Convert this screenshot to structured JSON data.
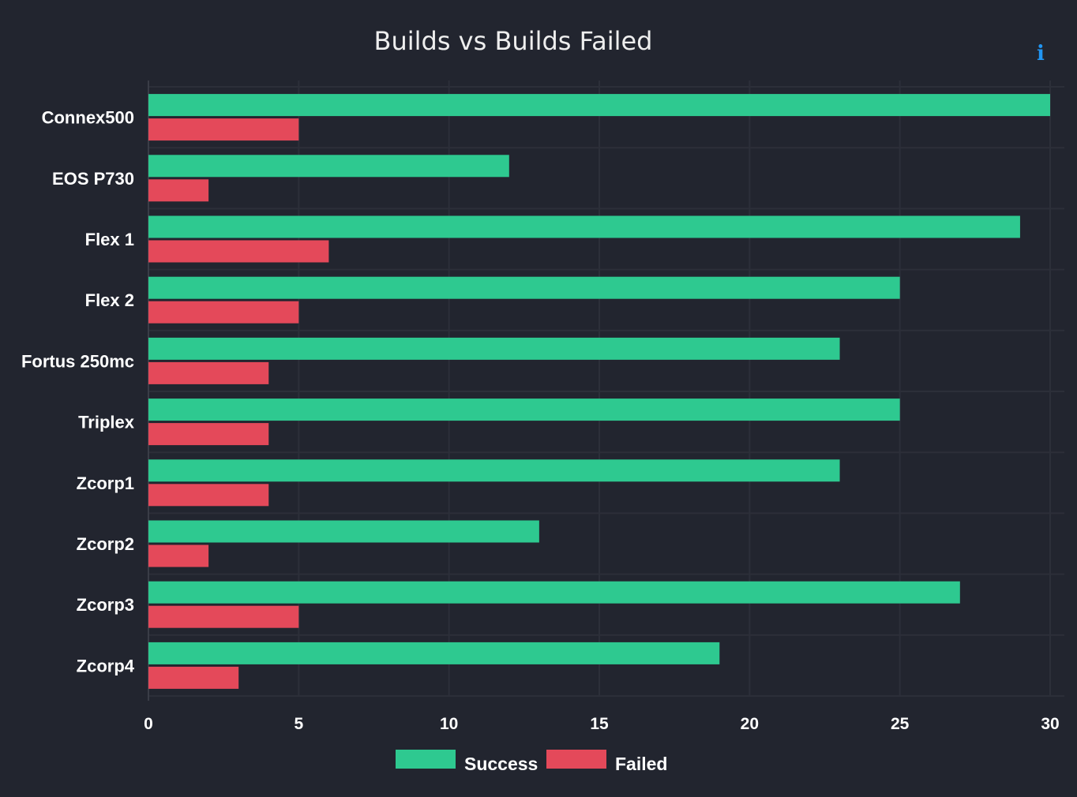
{
  "chart_data": {
    "type": "bar",
    "orientation": "horizontal",
    "title": "Builds vs Builds Failed",
    "xlabel": "",
    "ylabel": "",
    "xlim": [
      0,
      30
    ],
    "ticks": [
      "0",
      "5",
      "10",
      "15",
      "20",
      "25",
      "30"
    ],
    "grid": true,
    "legend": "bottom-center",
    "categories": [
      "Connex500",
      "EOS P730",
      "Flex 1",
      "Flex 2",
      "Fortus 250mc",
      "Triplex",
      "Zcorp1",
      "Zcorp2",
      "Zcorp3",
      "Zcorp4"
    ],
    "series": [
      {
        "name": "Success",
        "color": "#2ec990",
        "values": [
          30,
          12,
          29,
          25,
          23,
          25,
          23,
          13,
          27,
          19
        ]
      },
      {
        "name": "Failed",
        "color": "#e4495a",
        "values": [
          5,
          2,
          6,
          5,
          4,
          4,
          4,
          2,
          5,
          3
        ]
      }
    ]
  },
  "info_icon": {
    "glyph": "i",
    "icon": "info-icon",
    "color": "#2196f3"
  },
  "colors": {
    "background": "#22252f",
    "grid": "#2c2f39",
    "text": "#ffffff"
  }
}
